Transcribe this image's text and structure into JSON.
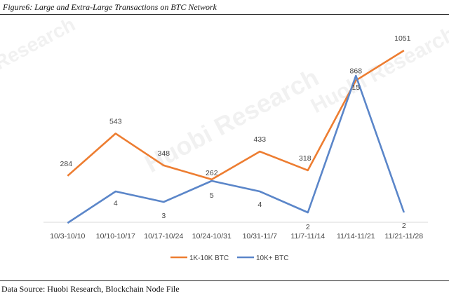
{
  "figure": {
    "title": "Figure6: Large and Extra-Large Transactions on BTC Network",
    "source": "Data Source: Huobi Research, Blockchain Node File"
  },
  "watermark_text": "Huobi Research",
  "watermark_partial": "Research",
  "chart_data": {
    "type": "line",
    "title": "",
    "xlabel": "",
    "ylabel": "",
    "categories": [
      "10/3-10/10",
      "10/10-10/17",
      "10/17-10/24",
      "10/24-10/31",
      "10/31-11/7",
      "11/7-11/14",
      "11/14-11/21",
      "11/21-11/28"
    ],
    "series": [
      {
        "name": "1K-10K BTC",
        "color": "#ED7D31",
        "values": [
          284,
          543,
          348,
          262,
          433,
          318,
          868,
          1051
        ],
        "labels": [
          "284",
          "543",
          "348",
          "262",
          "433",
          "318",
          "868",
          "1051"
        ]
      },
      {
        "name": "10K+ BTC",
        "color": "#5B86C9",
        "values": [
          1,
          4,
          3,
          5,
          4,
          2,
          15,
          2
        ],
        "labels": [
          "",
          "4",
          "3",
          "5",
          "4",
          "2",
          "15",
          "2"
        ]
      }
    ],
    "grid": false,
    "legend_position": "bottom"
  }
}
